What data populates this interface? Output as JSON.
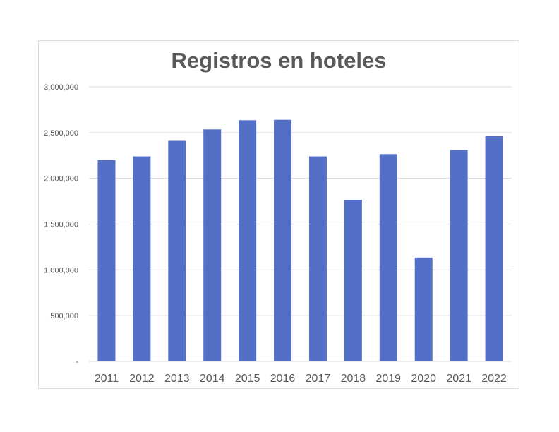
{
  "chart_data": {
    "type": "bar",
    "title": "Registros en hoteles",
    "xlabel": "",
    "ylabel": "",
    "categories": [
      "2011",
      "2012",
      "2013",
      "2014",
      "2015",
      "2016",
      "2017",
      "2018",
      "2019",
      "2020",
      "2021",
      "2022"
    ],
    "series": [
      {
        "values": [
          2200000,
          2240000,
          2410000,
          2535000,
          2635000,
          2640000,
          2240000,
          1765000,
          2265000,
          1135000,
          2310000,
          2460000
        ]
      }
    ],
    "ylim": [
      0,
      3000000
    ],
    "yticks": [
      0,
      500000,
      1000000,
      1500000,
      2000000,
      2500000,
      3000000
    ],
    "ytick_labels": [
      "-",
      "500,000",
      "1,000,000",
      "1,500,000",
      "2,000,000",
      "2,500,000",
      "3,000,000"
    ],
    "grid": true,
    "legend": "none",
    "colors": {
      "bar": "#5470C6",
      "grid": "#d9d9d9",
      "axis_text": "#595959",
      "title": "#595959"
    }
  }
}
